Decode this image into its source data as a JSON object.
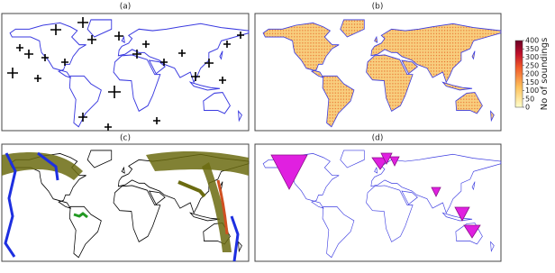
{
  "panels": [
    "(a)",
    "(b)",
    "(c)",
    "(d)"
  ],
  "colorbar": {
    "label": "No of soundings",
    "lim": [
      0,
      400
    ],
    "ticks": [
      0,
      50,
      100,
      150,
      200,
      250,
      300,
      350,
      400
    ]
  }
}
